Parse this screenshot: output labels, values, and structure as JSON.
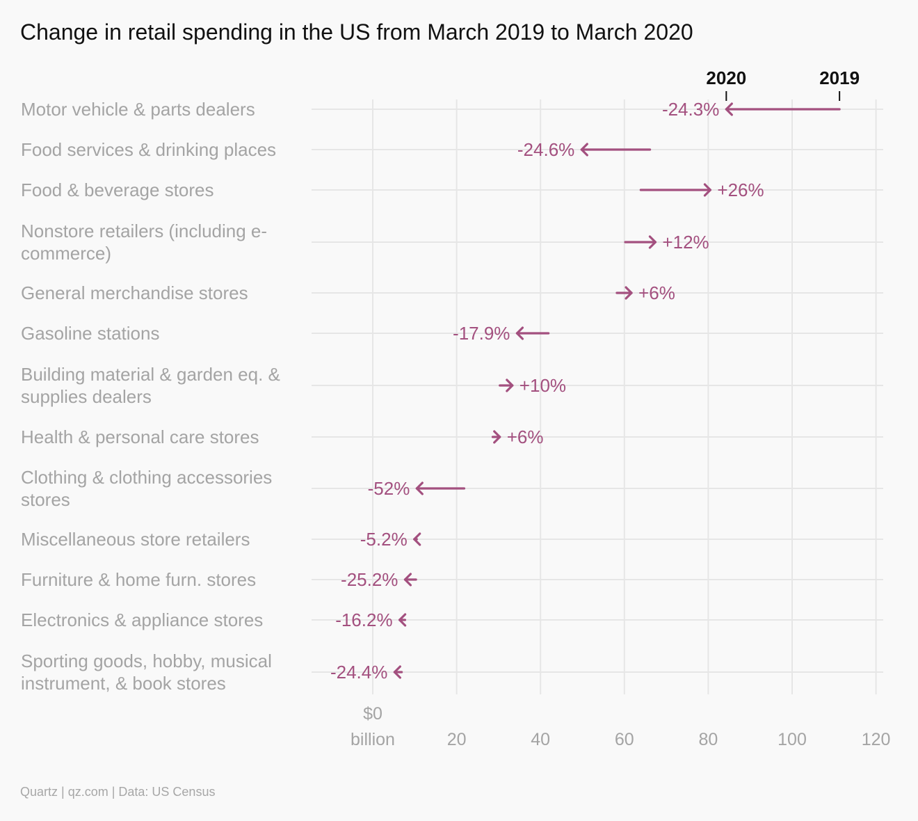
{
  "chart_data": {
    "type": "arrow-dumbbell",
    "title": "Change in retail spending in the US from March 2019 to March 2020",
    "source": "Quartz | qz.com | Data: US Census",
    "legend": {
      "start_label": "2019",
      "end_label": "2020",
      "placement": "top-right"
    },
    "xlim": [
      -15,
      122
    ],
    "xticks": [
      {
        "value": 0,
        "lines": [
          "$0",
          "billion"
        ]
      },
      {
        "value": 20,
        "lines": [
          "20"
        ]
      },
      {
        "value": 40,
        "lines": [
          "40"
        ]
      },
      {
        "value": 60,
        "lines": [
          "60"
        ]
      },
      {
        "value": 80,
        "lines": [
          "80"
        ]
      },
      {
        "value": 100,
        "lines": [
          "100"
        ]
      },
      {
        "value": 120,
        "lines": [
          "120"
        ]
      }
    ],
    "grid": true,
    "series": [
      {
        "category": [
          "Motor vehicle & parts dealers"
        ],
        "v2019": 111.3,
        "v2020": 84.3,
        "change": "-24.3%"
      },
      {
        "category": [
          "Food services & drinking places"
        ],
        "v2019": 66.1,
        "v2020": 49.8,
        "change": "-24.6%"
      },
      {
        "category": [
          "Food & beverage stores"
        ],
        "v2019": 63.9,
        "v2020": 80.5,
        "change": "+26%"
      },
      {
        "category": [
          "Nonstore retailers (including e-",
          "commerce)"
        ],
        "v2019": 60.2,
        "v2020": 67.4,
        "change": "+12%"
      },
      {
        "category": [
          "General merchandise stores"
        ],
        "v2019": 58.2,
        "v2020": 61.7,
        "change": "+6%"
      },
      {
        "category": [
          "Gasoline stations"
        ],
        "v2019": 41.9,
        "v2020": 34.4,
        "change": "-17.9%"
      },
      {
        "category": [
          "Building material & garden eq. &",
          "supplies dealers"
        ],
        "v2019": 30.3,
        "v2020": 33.3,
        "change": "+10%"
      },
      {
        "category": [
          "Health & personal care stores"
        ],
        "v2019": 28.6,
        "v2020": 30.3,
        "change": "+6%"
      },
      {
        "category": [
          "Clothing & clothing accessories",
          "stores"
        ],
        "v2019": 21.8,
        "v2020": 10.5,
        "change": "-52%"
      },
      {
        "category": [
          "Miscellaneous store retailers"
        ],
        "v2019": 10.5,
        "v2020": 9.9,
        "change": "-5.2%"
      },
      {
        "category": [
          "Furniture & home furn. stores"
        ],
        "v2019": 10.3,
        "v2020": 7.7,
        "change": "-25.2%"
      },
      {
        "category": [
          "Electronics & appliance stores"
        ],
        "v2019": 7.7,
        "v2020": 6.4,
        "change": "-16.2%"
      },
      {
        "category": [
          "Sporting goods, hobby, musical",
          "instrument, & book stores"
        ],
        "v2019": 6.9,
        "v2020": 5.2,
        "change": "-24.4%"
      }
    ]
  },
  "colors": {
    "arrow": "#a3507f",
    "grid": "#e6e6e6",
    "label": "#a4a4a4",
    "title": "#111111"
  }
}
